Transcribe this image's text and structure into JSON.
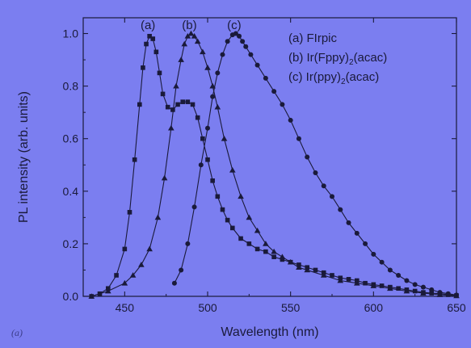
{
  "chart_data": {
    "type": "line",
    "xlabel": "Wavelength (nm)",
    "ylabel": "PL intensity (arb. units)",
    "xlim": [
      425,
      650
    ],
    "ylim": [
      0.0,
      1.06
    ],
    "x_ticks": [
      450,
      500,
      550,
      600,
      650
    ],
    "y_ticks": [
      0.0,
      0.2,
      0.4,
      0.6,
      0.8,
      1.0
    ],
    "y_tick_labels": [
      "0.0",
      "0.2",
      "0.4",
      "0.6",
      "0.8",
      "1.0"
    ],
    "grid": false,
    "legend_position": "top-right",
    "panel_label": "(a)",
    "series": [
      {
        "tag": "(a)",
        "legend_main": "FIrpic",
        "legend_sub": "",
        "legend_after": "",
        "marker": "square",
        "color": "#1a1a3a",
        "x": [
          430,
          435,
          440,
          445,
          450,
          453,
          456,
          459,
          461,
          463,
          465,
          467,
          469,
          471,
          473,
          476,
          479,
          482,
          485,
          488,
          491,
          494,
          497,
          500,
          503,
          506,
          509,
          512,
          515,
          520,
          525,
          530,
          535,
          540,
          545,
          550,
          555,
          560,
          565,
          570,
          575,
          580,
          585,
          590,
          595,
          600,
          605,
          610,
          615,
          620,
          625,
          630,
          635,
          640,
          645,
          650
        ],
        "y": [
          0.0,
          0.01,
          0.03,
          0.08,
          0.18,
          0.32,
          0.52,
          0.73,
          0.87,
          0.96,
          0.99,
          0.98,
          0.93,
          0.85,
          0.77,
          0.72,
          0.71,
          0.73,
          0.74,
          0.74,
          0.73,
          0.68,
          0.6,
          0.52,
          0.44,
          0.38,
          0.33,
          0.29,
          0.26,
          0.22,
          0.2,
          0.18,
          0.17,
          0.15,
          0.14,
          0.13,
          0.12,
          0.11,
          0.1,
          0.09,
          0.08,
          0.07,
          0.065,
          0.06,
          0.05,
          0.045,
          0.04,
          0.035,
          0.03,
          0.025,
          0.02,
          0.015,
          0.012,
          0.01,
          0.006,
          0.003
        ]
      },
      {
        "tag": "(b)",
        "legend_main": "Ir(Fppy)",
        "legend_sub": "2",
        "legend_after": "(acac)",
        "marker": "triangle",
        "color": "#1a1a3a",
        "x": [
          430,
          440,
          450,
          455,
          460,
          465,
          470,
          474,
          478,
          481,
          484,
          486,
          488,
          490,
          492,
          494,
          497,
          500,
          503,
          506,
          510,
          515,
          520,
          525,
          530,
          535,
          540,
          545,
          550,
          555,
          560,
          570,
          580,
          590,
          600,
          610,
          620,
          630,
          640,
          650
        ],
        "y": [
          0.0,
          0.02,
          0.05,
          0.08,
          0.12,
          0.18,
          0.3,
          0.45,
          0.64,
          0.8,
          0.9,
          0.96,
          0.99,
          1.0,
          0.99,
          0.97,
          0.93,
          0.87,
          0.8,
          0.72,
          0.6,
          0.48,
          0.38,
          0.3,
          0.25,
          0.2,
          0.17,
          0.15,
          0.13,
          0.11,
          0.1,
          0.08,
          0.06,
          0.05,
          0.04,
          0.03,
          0.02,
          0.012,
          0.006,
          0.002
        ]
      },
      {
        "tag": "(c)",
        "legend_main": "Ir(ppy)",
        "legend_sub": "2",
        "legend_after": "(acac)",
        "marker": "circle",
        "color": "#1a1a3a",
        "x": [
          480,
          484,
          488,
          492,
          496,
          500,
          503,
          506,
          509,
          512,
          515,
          517,
          519,
          521,
          523,
          526,
          530,
          535,
          540,
          545,
          550,
          555,
          560,
          565,
          570,
          575,
          580,
          585,
          590,
          595,
          600,
          605,
          610,
          615,
          620,
          625,
          630,
          635,
          640,
          645,
          650
        ],
        "y": [
          0.05,
          0.1,
          0.2,
          0.34,
          0.5,
          0.64,
          0.76,
          0.85,
          0.92,
          0.97,
          0.995,
          1.0,
          0.99,
          0.97,
          0.95,
          0.92,
          0.88,
          0.83,
          0.78,
          0.73,
          0.67,
          0.6,
          0.53,
          0.47,
          0.42,
          0.38,
          0.33,
          0.28,
          0.24,
          0.2,
          0.16,
          0.13,
          0.1,
          0.08,
          0.06,
          0.045,
          0.035,
          0.025,
          0.015,
          0.01,
          0.005
        ]
      }
    ]
  }
}
